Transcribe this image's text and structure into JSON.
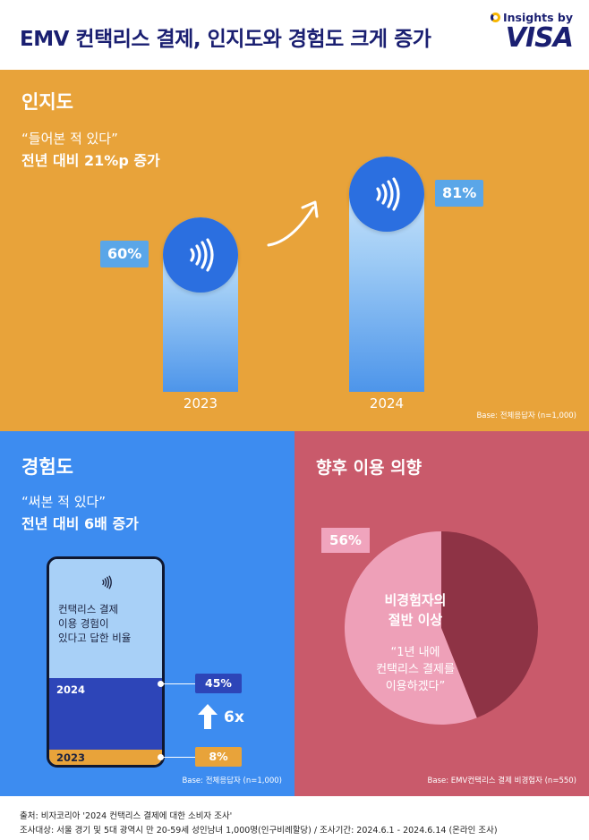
{
  "header": {
    "title": "EMV 컨택리스 결제, 인지도와 경험도 크게 증가",
    "brand_top": "Insights by",
    "brand_name": "VISA"
  },
  "awareness": {
    "title": "인지도",
    "quote": "“들어본 적 있다”",
    "claim": "전년 대비 21%p 증가",
    "base": "Base: 전체응답자 (n=1,000)"
  },
  "experience": {
    "title": "경험도",
    "quote": "“써본 적 있다”",
    "claim": "전년 대비 6배 증가",
    "phone_text": [
      "컨택리스 결제",
      "이용 경험이",
      "있다고 답한 비율"
    ],
    "multiplier": "6x",
    "base": "Base: 전체응답자 (n=1,000)"
  },
  "intention": {
    "title": "향후 이용 의향",
    "pie_title": [
      "비경험자의",
      "절반 이상"
    ],
    "pie_quote": [
      "“1년 내에",
      "컨택리스 결제를",
      "이용하겠다”"
    ],
    "base": "Base: EMV컨택리스 결제 비경험자 (n=550)"
  },
  "footer": {
    "source": "출처: 비자코리아 '2024 컨택리스 결제에 대한 소비자 조사'",
    "target": "조사대상: 서울 경기 및 5대 광역시 만 20-59세 성인남녀 1,000명(인구비례할당) / 조사기간: 2024.6.1 - 2024.6.14 (온라인 조사)"
  },
  "colors": {
    "visa_navy": "#1a1f71",
    "awareness_bg": "#e8a33a",
    "experience_bg": "#3d8cf0",
    "intention_bg": "#c95a6b",
    "pie_light": "#f0a4bd",
    "pie_dark": "#8e3345"
  },
  "icons": {
    "contactless": "contactless-icon",
    "arrow_up": "arrow-up-icon",
    "curved_arrow": "curved-arrow-icon"
  },
  "chart_data": [
    {
      "type": "bar",
      "categories": [
        "2023",
        "2024"
      ],
      "values": [
        60,
        81
      ],
      "labels": [
        "60%",
        "81%"
      ],
      "ylim": [
        0,
        100
      ]
    },
    {
      "type": "bar",
      "categories": [
        "2024",
        "2023"
      ],
      "values": [
        45,
        8
      ],
      "labels": [
        "45%",
        "8%"
      ],
      "ylim": [
        0,
        100
      ]
    },
    {
      "type": "pie",
      "values": [
        56,
        44
      ],
      "labels": [
        "56%",
        ""
      ]
    }
  ]
}
